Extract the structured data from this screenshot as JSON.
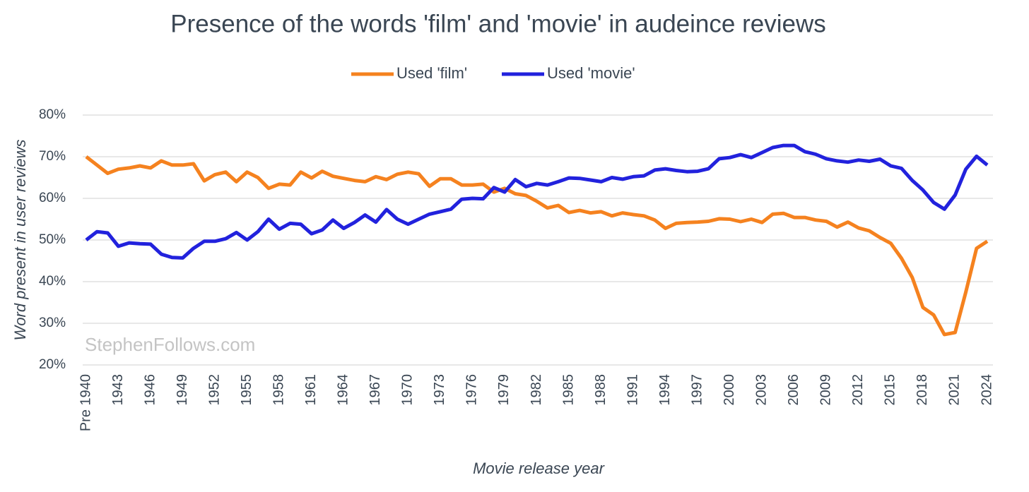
{
  "chart_data": {
    "type": "line",
    "title": "Presence of the words 'film' and 'movie' in audeince reviews",
    "x_label": "Movie release year",
    "y_label": "Word present in user reviews",
    "annotation": "StephenFollows.com",
    "categories": [
      "Pre 1940",
      null,
      null,
      "1943",
      null,
      null,
      "1946",
      null,
      null,
      "1949",
      null,
      null,
      "1952",
      null,
      null,
      "1955",
      null,
      null,
      "1958",
      null,
      null,
      "1961",
      null,
      null,
      "1964",
      null,
      null,
      "1967",
      null,
      null,
      "1970",
      null,
      null,
      "1973",
      null,
      null,
      "1976",
      null,
      null,
      "1979",
      null,
      null,
      "1982",
      null,
      null,
      "1985",
      null,
      null,
      "1988",
      null,
      null,
      "1991",
      null,
      null,
      "1994",
      null,
      null,
      "1997",
      null,
      null,
      "2000",
      null,
      null,
      "2003",
      null,
      null,
      "2006",
      null,
      null,
      "2009",
      null,
      null,
      "2012",
      null,
      null,
      "2015",
      null,
      null,
      "2018",
      null,
      null,
      "2021",
      null,
      null,
      "2024"
    ],
    "series": [
      {
        "name": "Used 'film'",
        "color": "#f5821f",
        "values": [
          70,
          68,
          66,
          67,
          67.3,
          67.8,
          67.3,
          69,
          68,
          68,
          68.3,
          64.2,
          65.7,
          66.3,
          64,
          66.3,
          65,
          62.4,
          63.4,
          63.2,
          66.3,
          64.9,
          66.5,
          65.3,
          64.8,
          64.3,
          64,
          65.2,
          64.5,
          65.8,
          66.3,
          65.9,
          62.9,
          64.7,
          64.7,
          63.2,
          63.2,
          63.4,
          61.5,
          62.4,
          61.1,
          60.7,
          59.3,
          57.7,
          58.3,
          56.6,
          57.1,
          56.5,
          56.8,
          55.8,
          56.5,
          56.1,
          55.8,
          54.8,
          52.8,
          54,
          54.2,
          54.3,
          54.5,
          55.1,
          55,
          54.4,
          55,
          54.2,
          56.2,
          56.4,
          55.4,
          55.4,
          54.8,
          54.5,
          53.1,
          54.3,
          52.9,
          52.2,
          50.6,
          49.2,
          45.6,
          41,
          33.8,
          32,
          27.3,
          27.8,
          37.5,
          48,
          49.7
        ]
      },
      {
        "name": "Used 'movie'",
        "color": "#2222dd",
        "values": [
          50,
          52,
          51.7,
          48.5,
          49.3,
          49.1,
          49,
          46.6,
          45.8,
          45.7,
          48,
          49.7,
          49.7,
          50.3,
          51.8,
          50,
          52,
          55,
          52.6,
          54,
          53.8,
          51.5,
          52.4,
          54.8,
          52.8,
          54.2,
          56,
          54.3,
          57.3,
          55,
          53.8,
          55,
          56.2,
          56.8,
          57.4,
          59.8,
          60,
          59.9,
          62.6,
          61.5,
          64.5,
          62.8,
          63.6,
          63.2,
          64,
          64.9,
          64.8,
          64.4,
          64,
          65,
          64.6,
          65.2,
          65.4,
          66.8,
          67.1,
          66.7,
          66.4,
          66.5,
          67.1,
          69.5,
          69.8,
          70.5,
          69.8,
          71,
          72.2,
          72.7,
          72.7,
          71.2,
          70.6,
          69.5,
          69,
          68.7,
          69.2,
          68.9,
          69.4,
          67.8,
          67.2,
          64.3,
          62,
          59,
          57.4,
          60.8,
          67,
          70.1,
          68
        ]
      }
    ],
    "ylim": [
      20,
      80
    ],
    "yticks": [
      {
        "value": 20,
        "label": "20%"
      },
      {
        "value": 30,
        "label": "30%"
      },
      {
        "value": 40,
        "label": "40%"
      },
      {
        "value": 50,
        "label": "50%"
      },
      {
        "value": 60,
        "label": "60%"
      },
      {
        "value": 70,
        "label": "70%"
      },
      {
        "value": 80,
        "label": "80%"
      }
    ],
    "grid": true,
    "legend": "top"
  }
}
